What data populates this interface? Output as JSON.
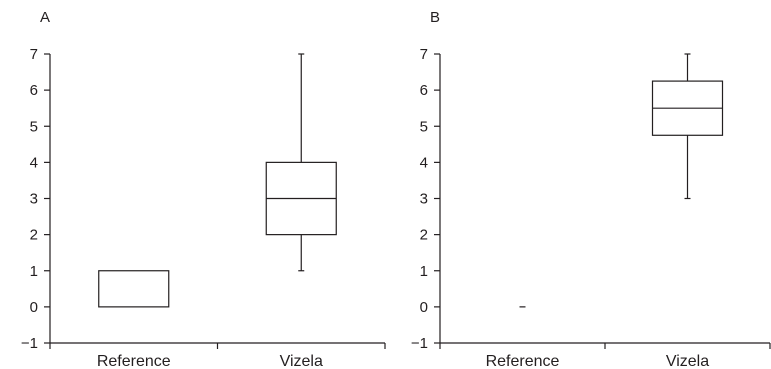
{
  "chart_data": [
    {
      "type": "box",
      "panel_label": "A",
      "categories": [
        "Reference",
        "Vizela"
      ],
      "ylim": [
        -1,
        7
      ],
      "yticks": [
        "7",
        "6",
        "5",
        "4",
        "3",
        "2",
        "1",
        "0",
        "−1"
      ],
      "yvalues": [
        7,
        6,
        5,
        4,
        3,
        2,
        1,
        0,
        -1
      ],
      "boxes": [
        {
          "category": "Reference",
          "min": 0,
          "q1": 0,
          "median": 0,
          "q3": 1,
          "max": 1
        },
        {
          "category": "Vizela",
          "min": 1,
          "q1": 2,
          "median": 3,
          "q3": 4,
          "max": 7
        }
      ]
    },
    {
      "type": "box",
      "panel_label": "B",
      "categories": [
        "Reference",
        "Vizela"
      ],
      "ylim": [
        -1,
        7
      ],
      "yticks": [
        "7",
        "6",
        "5",
        "4",
        "3",
        "2",
        "1",
        "0",
        "−1"
      ],
      "yvalues": [
        7,
        6,
        5,
        4,
        3,
        2,
        1,
        0,
        -1
      ],
      "boxes": [
        {
          "category": "Reference",
          "min": 0,
          "q1": 0,
          "median": 0,
          "q3": 0,
          "max": 0
        },
        {
          "category": "Vizela",
          "min": 3,
          "q1": 4.75,
          "median": 5.5,
          "q3": 6.25,
          "max": 7
        }
      ]
    }
  ]
}
